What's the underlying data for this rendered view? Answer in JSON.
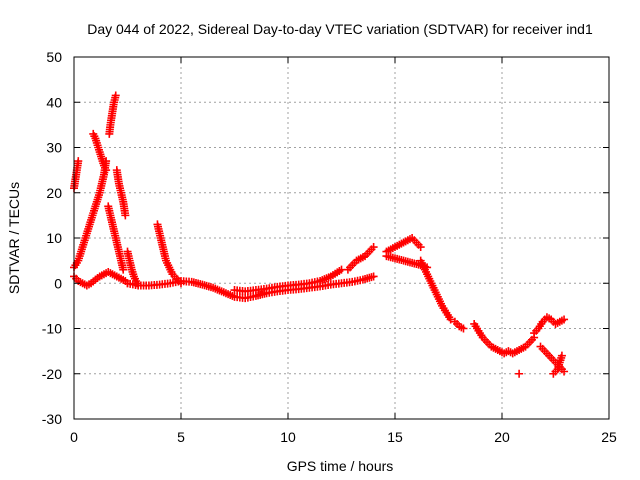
{
  "chart_data": {
    "type": "scatter",
    "title": "Day 044 of 2022, Sidereal Day-to-day VTEC variation (SDTVAR) for receiver ind1",
    "xlabel": "GPS time / hours",
    "ylabel": "SDTVAR / TECUs",
    "xlim": [
      0,
      25
    ],
    "ylim": [
      -30,
      50
    ],
    "xticks": [
      0,
      5,
      10,
      15,
      20,
      25
    ],
    "yticks": [
      -30,
      -20,
      -10,
      0,
      10,
      20,
      30,
      40,
      50
    ],
    "grid": true,
    "marker": "+",
    "series": [
      {
        "name": "SDTVAR",
        "color": "#ff0000",
        "segments": [
          {
            "x": [
              0.0,
              0.05,
              0.1,
              0.15,
              0.2
            ],
            "y": [
              21,
              22.5,
              24,
              25.5,
              27
            ]
          },
          {
            "x": [
              0.0,
              0.2,
              0.4,
              0.6,
              0.8,
              1.0,
              1.2,
              1.4,
              1.5
            ],
            "y": [
              3.5,
              5,
              8,
              11,
              14,
              17,
              20,
              24,
              27
            ]
          },
          {
            "x": [
              0.9,
              1.0,
              1.1,
              1.2,
              1.3,
              1.4,
              1.5
            ],
            "y": [
              33,
              32,
              30.5,
              29,
              27.5,
              26,
              25
            ]
          },
          {
            "x": [
              1.65,
              1.7,
              1.75,
              1.8,
              1.85,
              1.9,
              1.95
            ],
            "y": [
              33,
              35,
              36.5,
              38,
              39.5,
              40.5,
              41.5
            ]
          },
          {
            "x": [
              1.6,
              1.7,
              1.8,
              1.9,
              2.0,
              2.1,
              2.2,
              2.3
            ],
            "y": [
              17,
              15,
              13,
              11,
              9,
              7,
              5,
              3
            ]
          },
          {
            "x": [
              2.0,
              2.1,
              2.2,
              2.3,
              2.4
            ],
            "y": [
              25,
              22,
              20,
              18,
              15
            ]
          },
          {
            "x": [
              0.0,
              0.2,
              0.4,
              0.6,
              0.8,
              1.0,
              1.2,
              1.4,
              1.6,
              1.8,
              2.0,
              2.2,
              2.4,
              2.5
            ],
            "y": [
              1.5,
              0.5,
              0,
              -0.5,
              0,
              0.8,
              1.5,
              2,
              2.5,
              2,
              1.5,
              1,
              0.5,
              0
            ]
          },
          {
            "x": [
              2.5,
              2.6,
              2.7,
              2.8,
              2.9,
              3.0
            ],
            "y": [
              7,
              5,
              3,
              1.5,
              0.5,
              -0.5
            ]
          },
          {
            "x": [
              2.5,
              3.0,
              3.5,
              4.0,
              4.5,
              5.0,
              5.5,
              6.0,
              6.5,
              7.0,
              7.5,
              8.0,
              8.5,
              9.0,
              9.5,
              10.0,
              10.5,
              11.0,
              11.5,
              12.0,
              12.5,
              13.0,
              13.5,
              14.0
            ],
            "y": [
              0,
              -0.5,
              -0.5,
              -0.3,
              0,
              0.5,
              0.3,
              -0.3,
              -1,
              -2,
              -3,
              -3.3,
              -2.8,
              -2.2,
              -1.8,
              -1.5,
              -1.3,
              -1,
              -0.7,
              -0.3,
              0,
              0.3,
              0.8,
              1.5
            ]
          },
          {
            "x": [
              3.9,
              4.0,
              4.1,
              4.2,
              4.3,
              4.4,
              4.5,
              4.6,
              4.8,
              5.0
            ],
            "y": [
              13,
              11,
              9,
              7,
              5,
              4,
              3,
              2,
              1,
              0
            ]
          },
          {
            "x": [
              7.5,
              8.0,
              8.5,
              9.0,
              9.5,
              10.0,
              10.5,
              11.0,
              11.5,
              12.0,
              12.5
            ],
            "y": [
              -1.5,
              -1.8,
              -1.5,
              -1.2,
              -0.8,
              -0.5,
              -0.3,
              0,
              0.5,
              1.5,
              3
            ]
          },
          {
            "x": [
              12.8,
              13.0,
              13.2,
              13.4,
              13.6,
              13.8,
              14.0
            ],
            "y": [
              3,
              4,
              5,
              5.5,
              6,
              7,
              8
            ]
          },
          {
            "x": [
              14.6,
              14.8,
              15.0,
              15.2,
              15.4,
              15.6,
              15.8,
              16.0,
              16.2
            ],
            "y": [
              7,
              7.5,
              8,
              8.5,
              9,
              9.5,
              10,
              9,
              8
            ]
          },
          {
            "x": [
              14.6,
              15.0,
              15.4,
              15.8,
              16.2,
              16.5
            ],
            "y": [
              6,
              5.5,
              5,
              4.5,
              4,
              3.5
            ]
          },
          {
            "x": [
              16.2,
              16.4,
              16.6,
              16.8,
              17.0,
              17.2,
              17.4,
              17.6
            ],
            "y": [
              5,
              3,
              1,
              -1,
              -3,
              -5,
              -6.5,
              -8
            ]
          },
          {
            "x": [
              17.8,
              18.0,
              18.2
            ],
            "y": [
              -8.5,
              -9.5,
              -10
            ]
          },
          {
            "x": [
              18.7,
              18.9,
              19.1,
              19.3,
              19.5,
              19.7,
              19.9,
              20.1,
              20.3,
              20.5,
              20.7,
              20.9,
              21.1,
              21.3,
              21.5
            ],
            "y": [
              -9,
              -10.5,
              -12,
              -13,
              -14,
              -14.5,
              -15,
              -15.5,
              -15,
              -15.5,
              -15,
              -14.5,
              -14,
              -13,
              -12
            ]
          },
          {
            "x": [
              20.8
            ],
            "y": [
              -20
            ]
          },
          {
            "x": [
              21.5,
              21.7,
              21.9,
              22.1,
              22.3,
              22.5,
              22.7,
              22.9
            ],
            "y": [
              -11,
              -10,
              -8.5,
              -7.5,
              -8,
              -9,
              -8.5,
              -8
            ]
          },
          {
            "x": [
              21.8,
              22.0,
              22.2,
              22.4,
              22.6,
              22.8,
              22.9
            ],
            "y": [
              -14,
              -15,
              -16,
              -17,
              -18,
              -19,
              -19.5
            ]
          },
          {
            "x": [
              22.4,
              22.6,
              22.8
            ],
            "y": [
              -20,
              -19,
              -16
            ]
          }
        ]
      }
    ]
  }
}
